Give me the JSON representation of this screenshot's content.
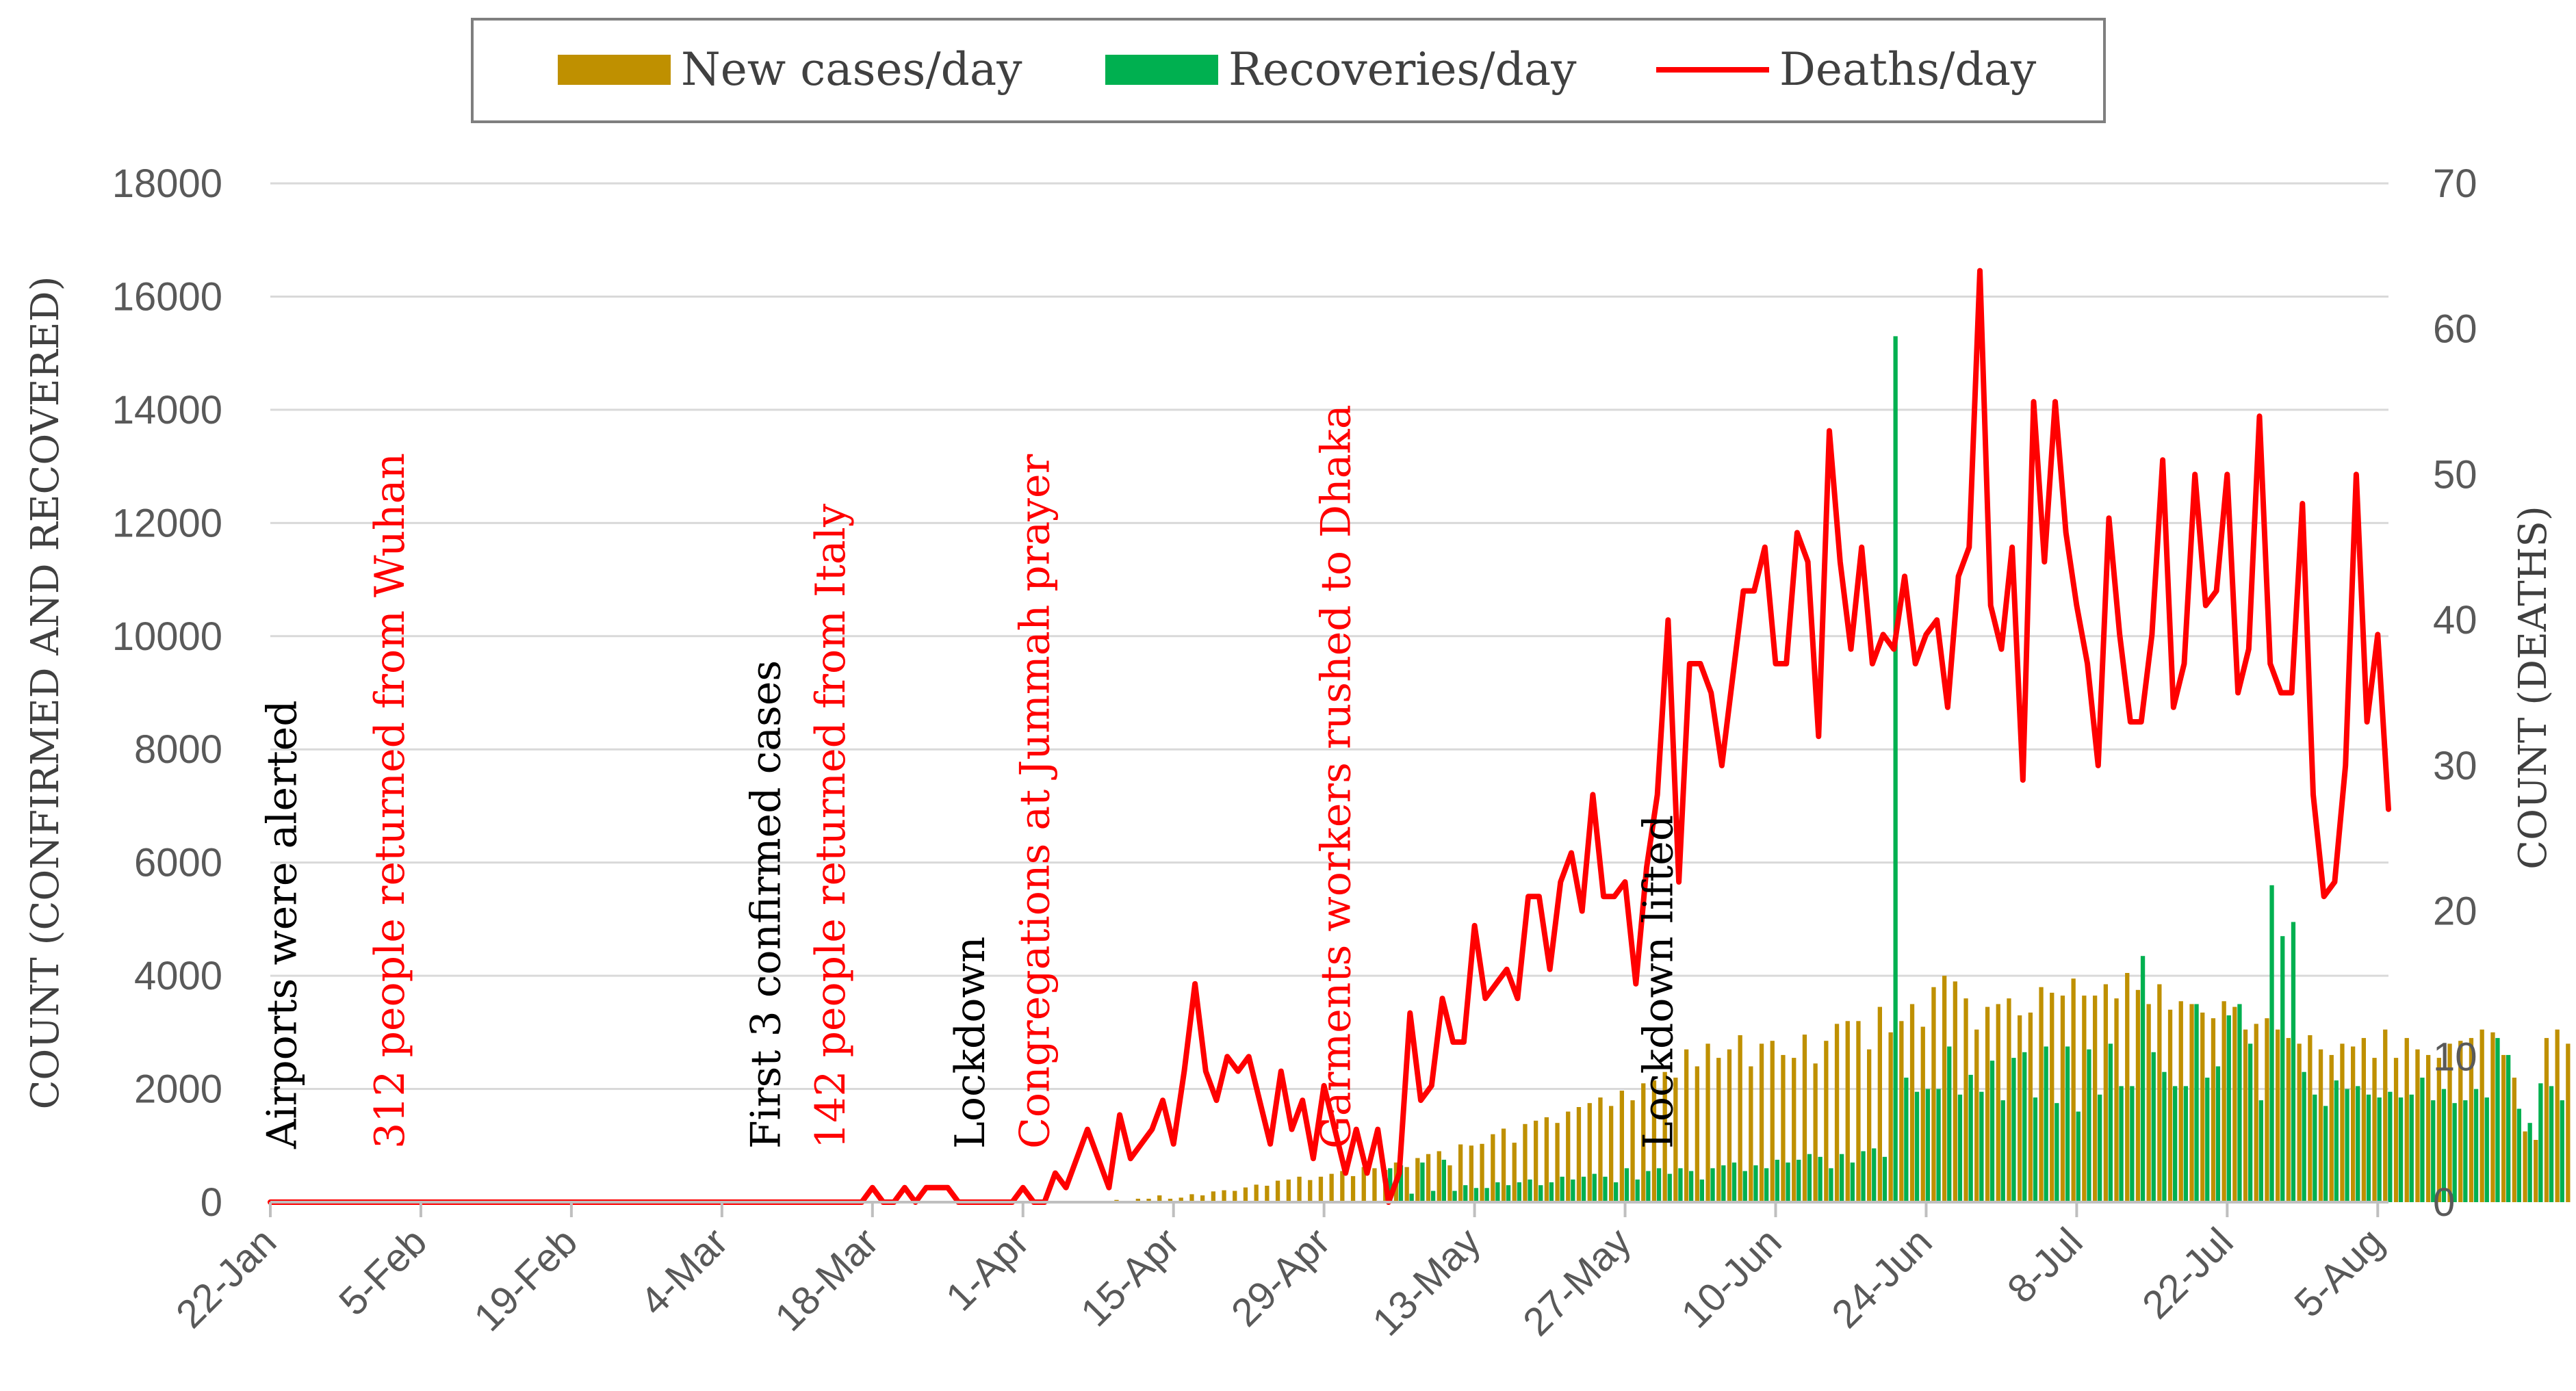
{
  "chart_data": {
    "type": "bar",
    "title": "",
    "x_tick_labels": [
      "22-Jan",
      "5-Feb",
      "19-Feb",
      "4-Mar",
      "18-Mar",
      "1-Apr",
      "15-Apr",
      "29-Apr",
      "13-May",
      "27-May",
      "10-Jun",
      "24-Jun",
      "8-Jul",
      "22-Jul",
      "5-Aug"
    ],
    "x_tick_days": [
      0,
      14,
      28,
      42,
      56,
      70,
      84,
      98,
      112,
      126,
      140,
      154,
      168,
      182,
      196
    ],
    "x_range_days": [
      0,
      197
    ],
    "ylabel": "COUNT (CONFIRMED AND RECOVERED)",
    "ylabel_right": "COUNT (DEATHS)",
    "ylim": [
      0,
      18000
    ],
    "ylim_right": [
      0,
      70
    ],
    "y_ticks": [
      0,
      2000,
      4000,
      6000,
      8000,
      10000,
      12000,
      14000,
      16000,
      18000
    ],
    "y_ticks_right": [
      0,
      10,
      20,
      30,
      40,
      50,
      60,
      70
    ],
    "legend": [
      {
        "name": "New cases/day",
        "color": "#bf9000",
        "kind": "bar"
      },
      {
        "name": "Recoveries/day",
        "color": "#00b050",
        "kind": "bar"
      },
      {
        "name": "Deaths/day",
        "color": "#ff0000",
        "kind": "line"
      }
    ],
    "annotations": [
      {
        "text": "Airports were alerted",
        "day": 1,
        "color": "#000000"
      },
      {
        "text": "312 people returned from Wuhan",
        "day": 11,
        "color": "#ff0000"
      },
      {
        "text": "First 3 confirmed cases",
        "day": 46,
        "color": "#000000"
      },
      {
        "text": "142 people returned from Italy",
        "day": 52,
        "color": "#ff0000"
      },
      {
        "text": "Lockdown",
        "day": 65,
        "color": "#000000"
      },
      {
        "text": "Congregations at Jummah prayer",
        "day": 71,
        "color": "#ff0000"
      },
      {
        "text": "Garments workers rushed to Dhaka",
        "day": 99,
        "color": "#ff0000"
      },
      {
        "text": "Lockdown lifted",
        "day": 129,
        "color": "#000000"
      }
    ],
    "series": [
      {
        "name": "New cases/day",
        "axis": "left",
        "start_day": 77,
        "values": [
          20,
          20,
          40,
          20,
          60,
          60,
          120,
          60,
          80,
          140,
          120,
          190,
          210,
          200,
          260,
          310,
          290,
          380,
          400,
          450,
          390,
          450,
          500,
          550,
          460,
          620,
          600,
          570,
          700,
          620,
          780,
          850,
          900,
          650,
          1020,
          1000,
          1030,
          1200,
          1300,
          1050,
          1380,
          1440,
          1500,
          1400,
          1600,
          1680,
          1750,
          1850,
          1700,
          1970,
          1800,
          2100,
          2150,
          2300,
          2200,
          2700,
          2400,
          2800,
          2550,
          2700,
          2950,
          2400,
          2800,
          2850,
          2600,
          2550,
          2960,
          2450,
          2850,
          3150,
          3200,
          3200,
          2700,
          3450,
          3000,
          3200,
          3500,
          3100,
          3800,
          4000,
          3900,
          3600,
          3050,
          3450,
          3500,
          3600,
          3300,
          3350,
          3800,
          3700,
          3650,
          3950,
          3650,
          3650,
          3850,
          3600,
          4050,
          3750,
          3500,
          3850,
          3400,
          3550,
          3500,
          3350,
          3250,
          3550,
          3450,
          3050,
          3150,
          3250,
          3050,
          2900,
          2800,
          2950,
          2700,
          2600,
          2800,
          2750,
          2900,
          2550,
          3050,
          2550,
          2900,
          2700,
          2600,
          2550,
          2800,
          2850,
          2900,
          3050,
          3000,
          2600,
          2200,
          1250,
          1100,
          2900,
          3050,
          2800
        ]
      },
      {
        "name": "Recoveries/day",
        "axis": "left",
        "start_day": 104,
        "values": [
          600,
          650,
          150,
          700,
          200,
          750,
          200,
          300,
          250,
          250,
          350,
          300,
          350,
          400,
          300,
          350,
          450,
          400,
          450,
          500,
          450,
          350,
          600,
          400,
          550,
          600,
          500,
          600,
          550,
          400,
          600,
          650,
          700,
          550,
          650,
          600,
          750,
          700,
          750,
          850,
          800,
          600,
          850,
          700,
          900,
          950,
          800,
          15300,
          2200,
          1950,
          2000,
          2000,
          2750,
          1900,
          2250,
          1950,
          2500,
          1800,
          2550,
          2650,
          1850,
          2750,
          1750,
          2750,
          1600,
          2700,
          1900,
          2800,
          2050,
          2050,
          4350,
          2650,
          2300,
          2050,
          2050,
          3500,
          2200,
          2400,
          3300,
          3500,
          2800,
          1800,
          5600,
          4700,
          4950,
          2300,
          1900,
          1700,
          2150,
          2000,
          2050,
          1900,
          1850,
          1950,
          1850,
          1900,
          2200,
          1800,
          2000,
          1750,
          1800,
          2000,
          1850,
          2900,
          2600,
          1650,
          1400,
          2100,
          2050,
          1800
        ]
      },
      {
        "name": "Deaths/day",
        "axis": "right",
        "start_day": 0,
        "values": [
          0,
          0,
          0,
          0,
          0,
          0,
          0,
          0,
          0,
          0,
          0,
          0,
          0,
          0,
          0,
          0,
          0,
          0,
          0,
          0,
          0,
          0,
          0,
          0,
          0,
          0,
          0,
          0,
          0,
          0,
          0,
          0,
          0,
          0,
          0,
          0,
          0,
          0,
          0,
          0,
          0,
          0,
          0,
          0,
          0,
          0,
          0,
          0,
          0,
          0,
          0,
          0,
          0,
          0,
          0,
          0,
          1,
          0,
          0,
          1,
          0,
          1,
          1,
          1,
          0,
          0,
          0,
          0,
          0,
          0,
          1,
          0,
          0,
          2,
          1,
          3,
          5,
          3,
          1,
          6,
          3,
          4,
          5,
          7,
          4,
          9,
          15,
          9,
          7,
          10,
          9,
          10,
          7,
          4,
          9,
          5,
          7,
          3,
          8,
          5,
          2,
          5,
          2,
          5,
          0,
          2,
          13,
          7,
          8,
          14,
          11,
          11,
          19,
          14,
          15,
          16,
          14,
          21,
          21,
          16,
          22,
          24,
          20,
          28,
          21,
          21,
          22,
          15,
          23,
          28,
          40,
          22,
          37,
          37,
          35,
          30,
          36,
          42,
          42,
          45,
          37,
          37,
          46,
          44,
          32,
          53,
          44,
          38,
          45,
          37,
          39,
          38,
          43,
          37,
          39,
          40,
          34,
          43,
          45,
          64,
          41,
          38,
          45,
          29,
          55,
          44,
          55,
          46,
          41,
          37,
          30,
          47,
          39,
          33,
          33,
          39,
          51,
          34,
          37,
          50,
          41,
          42,
          50,
          35,
          38,
          54,
          37,
          35,
          35,
          48,
          28,
          21,
          22,
          30,
          50,
          33,
          39,
          27
        ]
      }
    ]
  }
}
